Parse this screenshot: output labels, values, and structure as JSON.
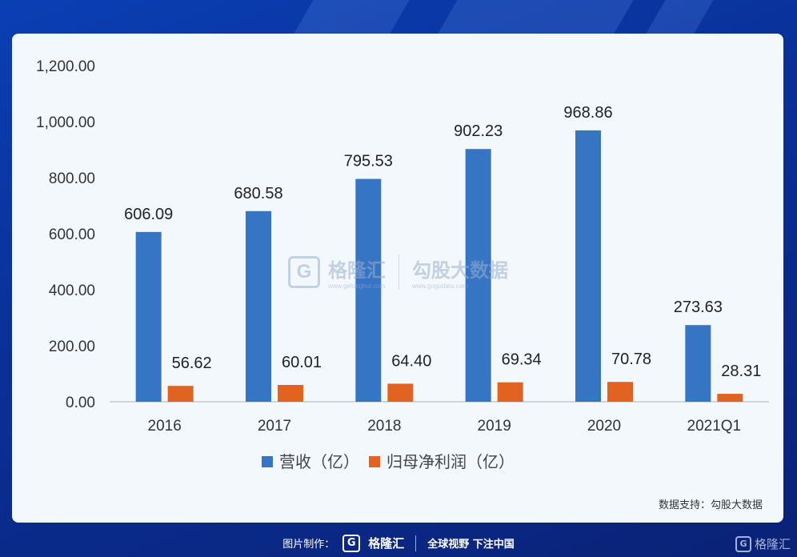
{
  "chart_data": {
    "type": "bar",
    "categories": [
      "2016",
      "2017",
      "2018",
      "2019",
      "2020",
      "2021Q1"
    ],
    "series": [
      {
        "name": "营收（亿）",
        "color": "#3674c4",
        "values": [
          606.09,
          680.58,
          795.53,
          902.23,
          968.86,
          273.63
        ]
      },
      {
        "name": "归母净利润（亿）",
        "color": "#e2621f",
        "values": [
          56.62,
          60.01,
          64.4,
          69.34,
          70.78,
          28.31
        ]
      }
    ],
    "value_labels": [
      [
        "606.09",
        "680.58",
        "795.53",
        "902.23",
        "968.86",
        "273.63"
      ],
      [
        "56.62",
        "60.01",
        "64.40",
        "69.34",
        "70.78",
        "28.31"
      ]
    ],
    "yticks": [
      "0.00",
      "200.00",
      "400.00",
      "600.00",
      "800.00",
      "1,000.00",
      "1,200.00"
    ],
    "ylim": [
      0,
      1200
    ],
    "grid": false,
    "legend_position": "bottom"
  },
  "watermark": {
    "logo_letter": "G",
    "brand": "格隆汇",
    "brand_url": "www.gelonghui.com",
    "data_brand": "勾股大数据",
    "data_url": "www.gogudata.com"
  },
  "source_note": "数据支持：勾股大数据",
  "footer": {
    "label": "图片制作：",
    "logo_letter": "G",
    "brand": "格隆汇",
    "slogan": "全球视野 下注中国"
  },
  "corner_logo": {
    "letter": "G",
    "brand": "格隆汇"
  }
}
